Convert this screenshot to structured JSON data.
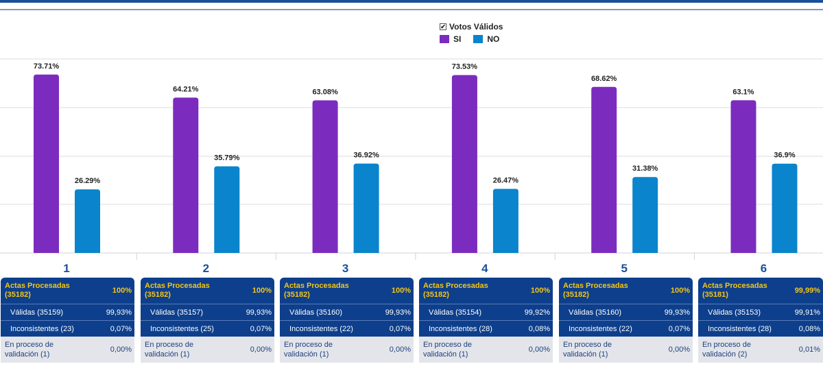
{
  "chart_data": {
    "type": "bar",
    "categories": [
      "1",
      "2",
      "3",
      "4",
      "5",
      "6"
    ],
    "series": [
      {
        "name": "SI",
        "values": [
          73.71,
          64.21,
          63.08,
          73.53,
          68.62,
          63.1
        ],
        "labels": [
          "73.71%",
          "64.21%",
          "63.08%",
          "73.53%",
          "68.62%",
          "63.1%"
        ]
      },
      {
        "name": "NO",
        "values": [
          26.29,
          35.79,
          36.92,
          26.47,
          31.38,
          36.9
        ],
        "labels": [
          "26.29%",
          "35.79%",
          "36.92%",
          "26.47%",
          "31.38%",
          "36.9%"
        ]
      }
    ],
    "legend_title": "Votos Válidos",
    "legend_position": "top-center",
    "grid": true,
    "colors": {
      "SI": "#7b2cbf",
      "NO": "#0a84cc"
    }
  },
  "legend": {
    "title": "Votos Válidos",
    "checkmark": "✔",
    "si": "SI",
    "no": "NO"
  },
  "panels": [
    {
      "head_label": "Actas Procesadas (35182)",
      "head_value": "100%",
      "valid_label": "Válidas (35159)",
      "valid_value": "99,93%",
      "incons_label": "Inconsistentes (23)",
      "incons_value": "0,07%",
      "proc_label": "En proceso de validación (1)",
      "proc_value": "0,00%"
    },
    {
      "head_label": "Actas Procesadas (35182)",
      "head_value": "100%",
      "valid_label": "Válidas (35157)",
      "valid_value": "99,93%",
      "incons_label": "Inconsistentes (25)",
      "incons_value": "0,07%",
      "proc_label": "En proceso de validación (1)",
      "proc_value": "0,00%"
    },
    {
      "head_label": "Actas Procesadas (35182)",
      "head_value": "100%",
      "valid_label": "Válidas (35160)",
      "valid_value": "99,93%",
      "incons_label": "Inconsistentes (22)",
      "incons_value": "0,07%",
      "proc_label": "En proceso de validación (1)",
      "proc_value": "0,00%"
    },
    {
      "head_label": "Actas Procesadas (35182)",
      "head_value": "100%",
      "valid_label": "Válidas (35154)",
      "valid_value": "99,92%",
      "incons_label": "Inconsistentes (28)",
      "incons_value": "0,08%",
      "proc_label": "En proceso de validación (1)",
      "proc_value": "0,00%"
    },
    {
      "head_label": "Actas Procesadas (35182)",
      "head_value": "100%",
      "valid_label": "Válidas (35160)",
      "valid_value": "99,93%",
      "incons_label": "Inconsistentes (22)",
      "incons_value": "0,07%",
      "proc_label": "En proceso de validación (1)",
      "proc_value": "0,00%"
    },
    {
      "head_label": "Actas Procesadas (35181)",
      "head_value": "99,99%",
      "valid_label": "Válidas (35153)",
      "valid_value": "99,91%",
      "incons_label": "Inconsistentes (28)",
      "incons_value": "0,08%",
      "proc_label": "En proceso de validación (2)",
      "proc_value": "0,01%"
    }
  ]
}
